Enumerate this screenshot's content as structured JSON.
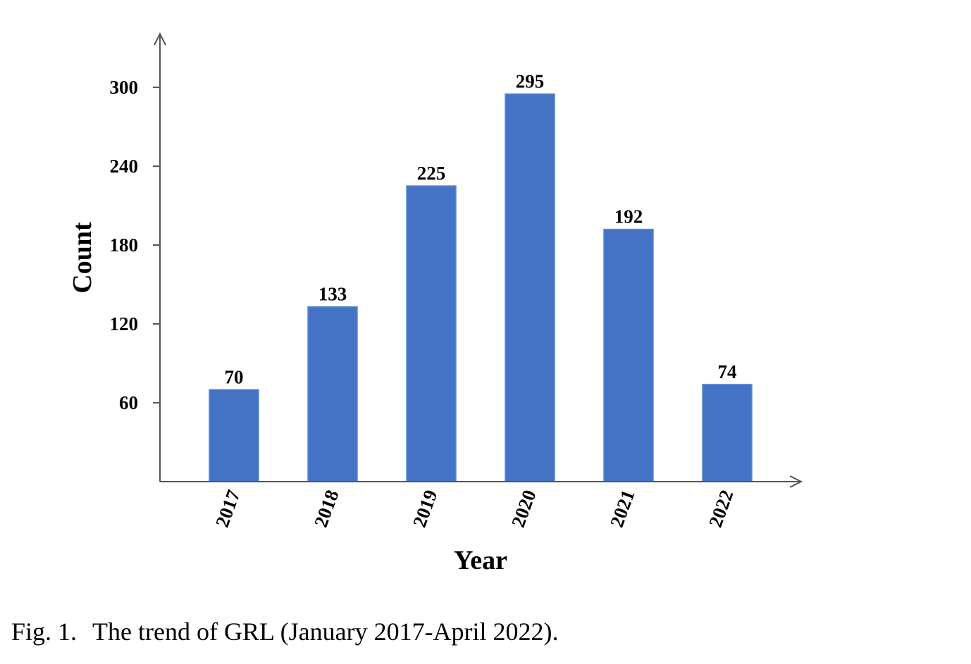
{
  "chart_data": {
    "type": "bar",
    "categories": [
      "2017",
      "2018",
      "2019",
      "2020",
      "2021",
      "2022"
    ],
    "values": [
      70,
      133,
      225,
      295,
      192,
      74
    ],
    "data_labels": [
      "70",
      "133",
      "225",
      "295",
      "192",
      "74"
    ],
    "title": "",
    "xlabel": "Year",
    "ylabel": "Count",
    "ylim": [
      0,
      330
    ],
    "yticks": [
      60,
      120,
      180,
      240,
      300
    ],
    "ytick_labels": [
      "60",
      "120",
      "180",
      "240",
      "300"
    ],
    "bar_color": "#4472C4",
    "grid": false,
    "legend": "none"
  },
  "caption": {
    "number": "Fig. 1.",
    "text": "The trend of GRL (January 2017-April 2022)."
  }
}
